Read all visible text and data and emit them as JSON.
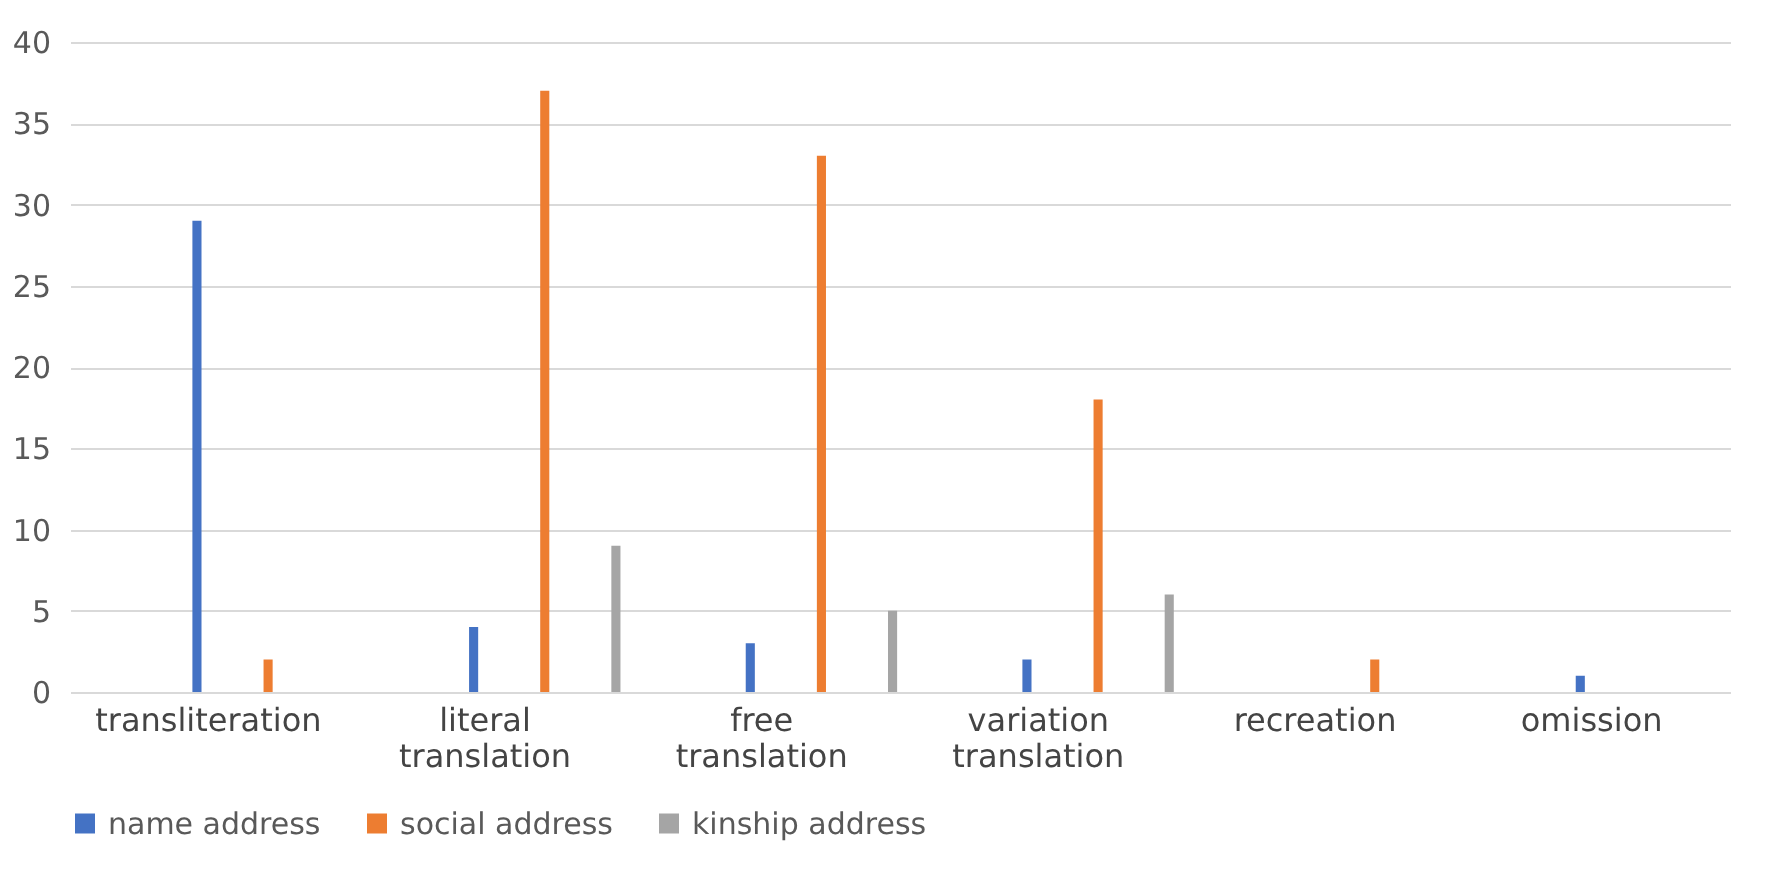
{
  "chart_data": {
    "type": "bar",
    "categories": [
      "transliteration",
      "literal translation",
      "free translation",
      "variation translation",
      "recreation",
      "omission"
    ],
    "series": [
      {
        "name": "name address",
        "color": "#4472c4",
        "values": [
          29,
          4,
          3,
          2,
          0,
          1
        ]
      },
      {
        "name": "social address",
        "color": "#ed7d31",
        "values": [
          2,
          37,
          33,
          18,
          2,
          0
        ]
      },
      {
        "name": "kinship address",
        "color": "#a5a5a5",
        "values": [
          0,
          9,
          5,
          6,
          0,
          0
        ]
      }
    ],
    "ylim": [
      0,
      40
    ],
    "yticks": [
      0,
      5,
      10,
      15,
      20,
      25,
      30,
      35,
      40
    ],
    "grid": "y",
    "legend": "bottom"
  }
}
